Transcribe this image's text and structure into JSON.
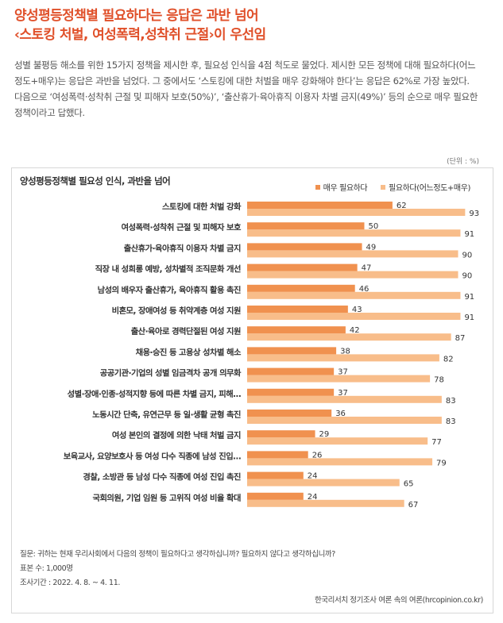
{
  "headline": {
    "line1": "양성평등정책별 필요하다는 응답은 과반 넘어",
    "line2": "‹스토킹 처벌, 여성폭력,성착취 근절›이 우선임"
  },
  "intro": "성별 불평등 해소를 위한 15가지 정책을 제시한 후, 필요성 인식을 4점 척도로 물었다. 제시한 모든 정책에 대해 필요하다(어느 정도+매우)는 응답은 과반을 넘었다. 그 중에서도 ‘스토킹에 대한 처벌을 매우 강화해야 한다’는 응답은 62%로 가장 높았다. 다음으로 ‘여성폭력·성착취 근절 및 피해자 보호(50%)’, ‘출산휴가·육아휴직 이용자 차별 금지(49%)’ 등의 순으로 매우 필요한 정책이라고 답했다.",
  "unit": "(단위 : %)",
  "colors": {
    "dark": "#f0914f",
    "light": "#f8bd8a",
    "headline": "#e0502a"
  },
  "chart_data": {
    "type": "bar",
    "orientation": "horizontal",
    "title": "양성평등정책별 필요성 인식, 과반을 넘어",
    "categories": [
      "스토킹에 대한 처벌 강화",
      "여성폭력·성착취 근절 및 피해자 보호",
      "출산휴가·육아휴직 이용자 차별 금지",
      "직장 내 성희롱 예방, 성차별적 조직문화 개선",
      "남성의 배우자 출산휴가, 육아휴직 활용 촉진",
      "비혼모, 장애여성 등 취약계층 여성 지원",
      "출산·육아로 경력단절된 여성 지원",
      "채용·승진 등 고용상 성차별 해소",
      "공공기관·기업의 성별 임금격차 공개 의무화",
      "성별·장애·인종·성적지향 등에 따른 차별 금지, 피해…",
      "노동시간 단축, 유연근무 등 일·생활 균형 촉진",
      "여성 본인의 결정에 의한 낙태 처벌 금지",
      "보육교사, 요양보호사 등 여성 다수 직종에 남성 진입…",
      "경찰, 소방관 등 남성 다수 직종에 여성 진입 촉진",
      "국회의원, 기업 임원 등 고위직 여성 비율 확대"
    ],
    "series": [
      {
        "name": "매우 필요하다",
        "values": [
          62,
          50,
          49,
          47,
          46,
          43,
          42,
          38,
          37,
          37,
          36,
          29,
          26,
          24,
          24
        ]
      },
      {
        "name": "필요하다(어느정도+매우)",
        "values": [
          93,
          91,
          90,
          90,
          91,
          91,
          87,
          82,
          78,
          83,
          83,
          77,
          79,
          65,
          67
        ]
      }
    ],
    "xlim": [
      0,
      100
    ],
    "legend": "top-right",
    "grid": false
  },
  "footnotes": {
    "question": "질문: 귀하는 현재 우리사회에서 다음의 정책이 필요하다고 생각하십니까? 필요하지 않다고 생각하십니까?",
    "sample": "표본 수: 1,000명",
    "period": "조사기간 : 2022. 4. 8. ~ 4. 11."
  },
  "source": "한국리서치 정기조사 여론 속의 여론(hrcopinion.co.kr)"
}
